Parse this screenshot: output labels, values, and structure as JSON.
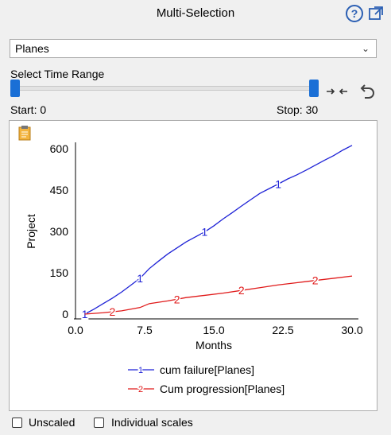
{
  "header": {
    "title": "Multi-Selection",
    "help_icon": "help-icon",
    "popout_icon": "popout-icon",
    "help_glyph": "?"
  },
  "selector": {
    "value": "Planes"
  },
  "time_range": {
    "label": "Select Time Range",
    "start_label": "Start: 0",
    "stop_label": "Stop: 30",
    "start": 0,
    "stop": 30
  },
  "toolbar": {
    "collapse_icon": "collapse-arrows-icon",
    "reset_icon": "undo-icon"
  },
  "checkboxes": {
    "unscaled": "Unscaled",
    "individual_scales": "Individual scales"
  },
  "colors": {
    "series1": "#1e22d6",
    "series2": "#e01a1a",
    "accent": "#1a6fd6"
  },
  "chart_data": {
    "type": "line",
    "xlabel": "Months",
    "ylabel": "Project",
    "xlim": [
      0,
      30
    ],
    "ylim": [
      0,
      600
    ],
    "xticks": [
      "0.0",
      "7.5",
      "15.0",
      "22.5",
      "30.0"
    ],
    "yticks": [
      "0",
      "150",
      "300",
      "450",
      "600"
    ],
    "series": [
      {
        "name": "cum failure[Planes]",
        "marker": "1",
        "color": "#1e22d6",
        "x": [
          1,
          2,
          3,
          4,
          5,
          6,
          7,
          8,
          9,
          10,
          11,
          12,
          13,
          14,
          15,
          16,
          17,
          18,
          19,
          20,
          21,
          22,
          23,
          24,
          25,
          26,
          27,
          28,
          29,
          30
        ],
        "y": [
          0,
          18,
          38,
          58,
          80,
          105,
          130,
          165,
          192,
          218,
          240,
          262,
          280,
          298,
          320,
          345,
          368,
          392,
          415,
          438,
          455,
          472,
          490,
          505,
          522,
          540,
          558,
          575,
          595,
          612
        ]
      },
      {
        "name": "Cum progression[Planes]",
        "marker": "2",
        "color": "#e01a1a",
        "x": [
          1,
          3,
          5,
          7,
          8,
          10,
          12,
          14,
          16,
          18,
          20,
          22,
          24,
          26,
          28,
          30
        ],
        "y": [
          0,
          5,
          12,
          24,
          38,
          48,
          60,
          68,
          76,
          86,
          96,
          106,
          114,
          122,
          130,
          138
        ]
      }
    ],
    "legend_position": "bottom"
  }
}
